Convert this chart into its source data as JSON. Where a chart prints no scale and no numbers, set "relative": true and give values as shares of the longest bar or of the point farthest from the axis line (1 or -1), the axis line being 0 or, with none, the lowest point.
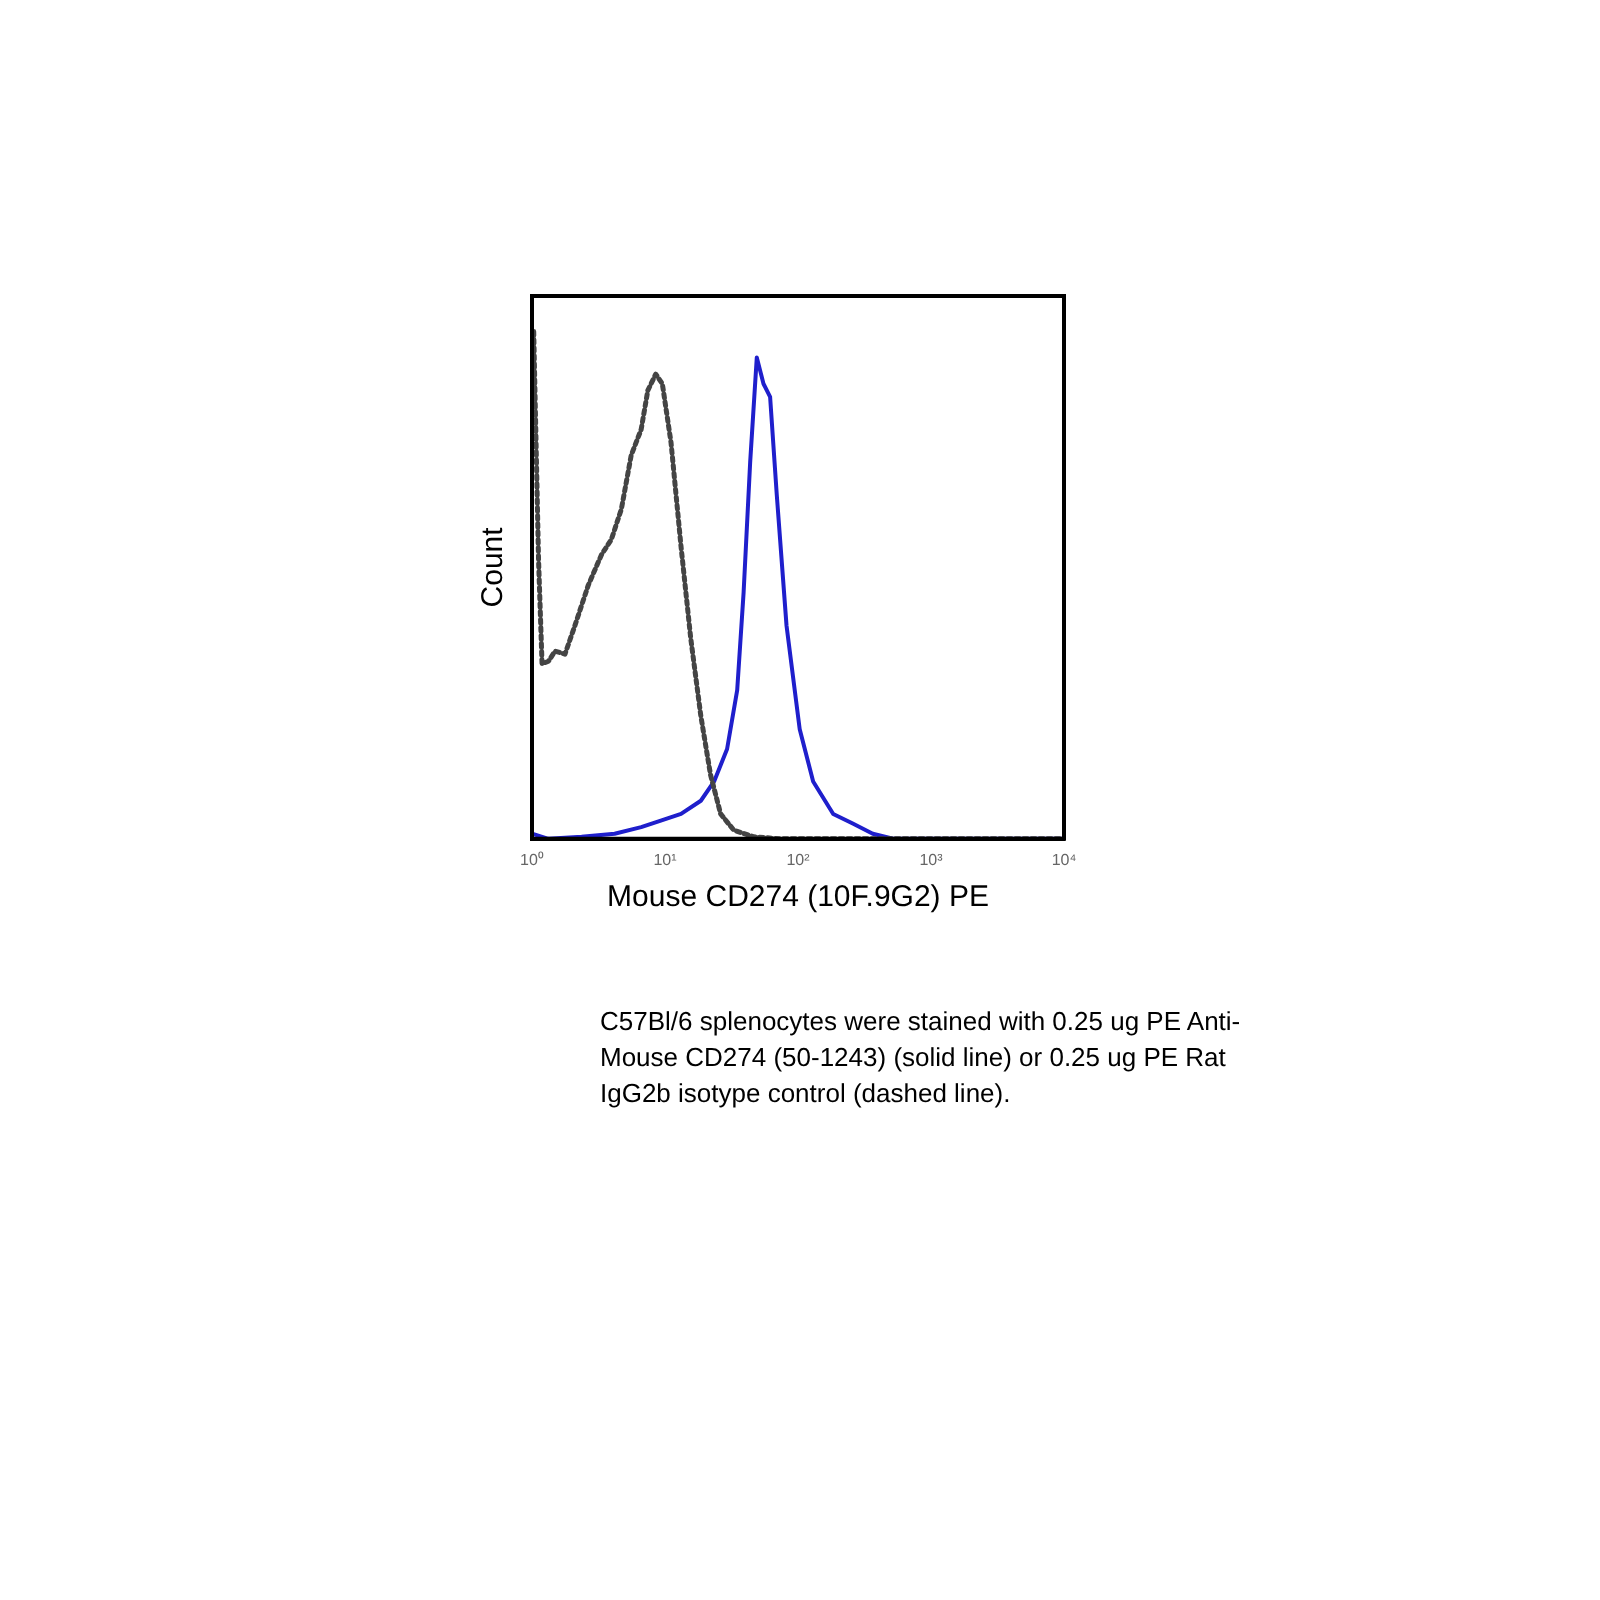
{
  "chart_data": {
    "type": "line",
    "xlabel": "Mouse CD274 (10F.9G2) PE",
    "ylabel": "Count",
    "log": "x",
    "relative": true,
    "grid": false,
    "legend": false,
    "marker": "none",
    "xlim": [
      1,
      10000
    ],
    "xticks": [
      {
        "value": 1,
        "label": "10⁰"
      },
      {
        "value": 10,
        "label": "10¹"
      },
      {
        "value": 100,
        "label": "10²"
      },
      {
        "value": 1000,
        "label": "10³"
      },
      {
        "value": 10000,
        "label": "10⁴"
      }
    ],
    "series": [
      {
        "color": "#444444",
        "line_style": "dotted",
        "x": [
          1.03,
          1.12,
          1.19,
          1.33,
          1.49,
          1.77,
          2.1,
          2.65,
          3.33,
          3.95,
          4.7,
          5.57,
          6.62,
          7.43,
          8.52,
          9.55,
          11.1,
          13.2,
          15.6,
          18.6,
          22,
          26.2,
          32.9,
          46.4,
          73.4,
          409,
          10000
        ],
        "values": [
          1,
          0.55,
          0.345,
          0.35,
          0.37,
          0.364,
          0.42,
          0.5,
          0.56,
          0.59,
          0.65,
          0.756,
          0.807,
          0.884,
          0.916,
          0.897,
          0.781,
          0.576,
          0.396,
          0.242,
          0.126,
          0.049,
          0.017,
          0.004,
          0,
          0,
          0
        ]
      },
      {
        "color": "#1f1fcc",
        "line_style": "solid",
        "x": [
          1,
          1.33,
          2.36,
          4.18,
          6.62,
          9.3,
          13.2,
          18.6,
          23.4,
          29.3,
          34.9,
          39,
          43.7,
          49,
          55,
          61.7,
          69.2,
          82,
          103,
          130,
          184,
          258,
          365,
          518,
          10000
        ],
        "values": [
          0.01,
          0,
          0.004,
          0.01,
          0.023,
          0.036,
          0.049,
          0.075,
          0.113,
          0.177,
          0.293,
          0.486,
          0.743,
          0.949,
          0.897,
          0.871,
          0.679,
          0.42,
          0.216,
          0.113,
          0.049,
          0.03,
          0.01,
          0,
          0
        ]
      }
    ],
    "annotations": [
      "C57Bl/6 splenocytes were stained with 0.25 ug PE Anti-Mouse CD274 (50-1243) (solid line) or 0.25 ug PE Rat IgG2b isotype control (dashed line)."
    ]
  }
}
